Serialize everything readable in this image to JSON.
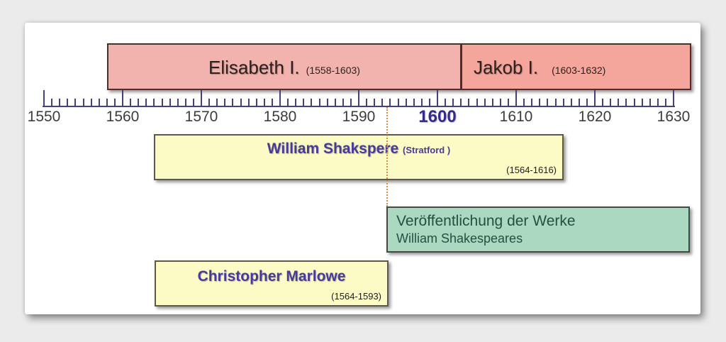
{
  "colors": {
    "page_bg": "#ebebeb",
    "card_fill": "#ffffff",
    "elisabeth_fill": "#f2b3af",
    "jakob_fill": "#f4a69c",
    "event_yellow": "#fcfac5",
    "publication_fill": "#aad8c0",
    "tick": "#45417b",
    "year_label": "#3c3c3c",
    "emphasized_year": "#342b8c",
    "marker_line": "#dd8b3c",
    "name_purple": "#473a9c",
    "green_text": "#235040",
    "reign_text": "#2d201d"
  },
  "timeline": {
    "start_year": 1550,
    "end_year": 1630,
    "minor_step": 1,
    "major_step": 10,
    "emphasized_year": 1600
  },
  "reigns": {
    "elisabeth": {
      "name": "Elisabeth I.",
      "years": "(1558-1603)",
      "start": 1558,
      "end": 1603
    },
    "jakob": {
      "name": "Jakob I.",
      "years": "(1603-1632)",
      "start": 1603,
      "end": 1632
    }
  },
  "events": {
    "shakspere": {
      "name": "William Shakspere",
      "place": "(Stratford )",
      "years": "(1564-1616)",
      "start": 1564,
      "end": 1616
    },
    "publication": {
      "line1": "Veröffentlichung der Werke",
      "line2": "William Shakespeares",
      "start": 1594,
      "end": 1632
    },
    "marlowe": {
      "name": "Christopher Marlowe",
      "years": "(1564-1593)",
      "start": 1564,
      "end": 1593
    }
  },
  "marker": {
    "year": 1594
  }
}
